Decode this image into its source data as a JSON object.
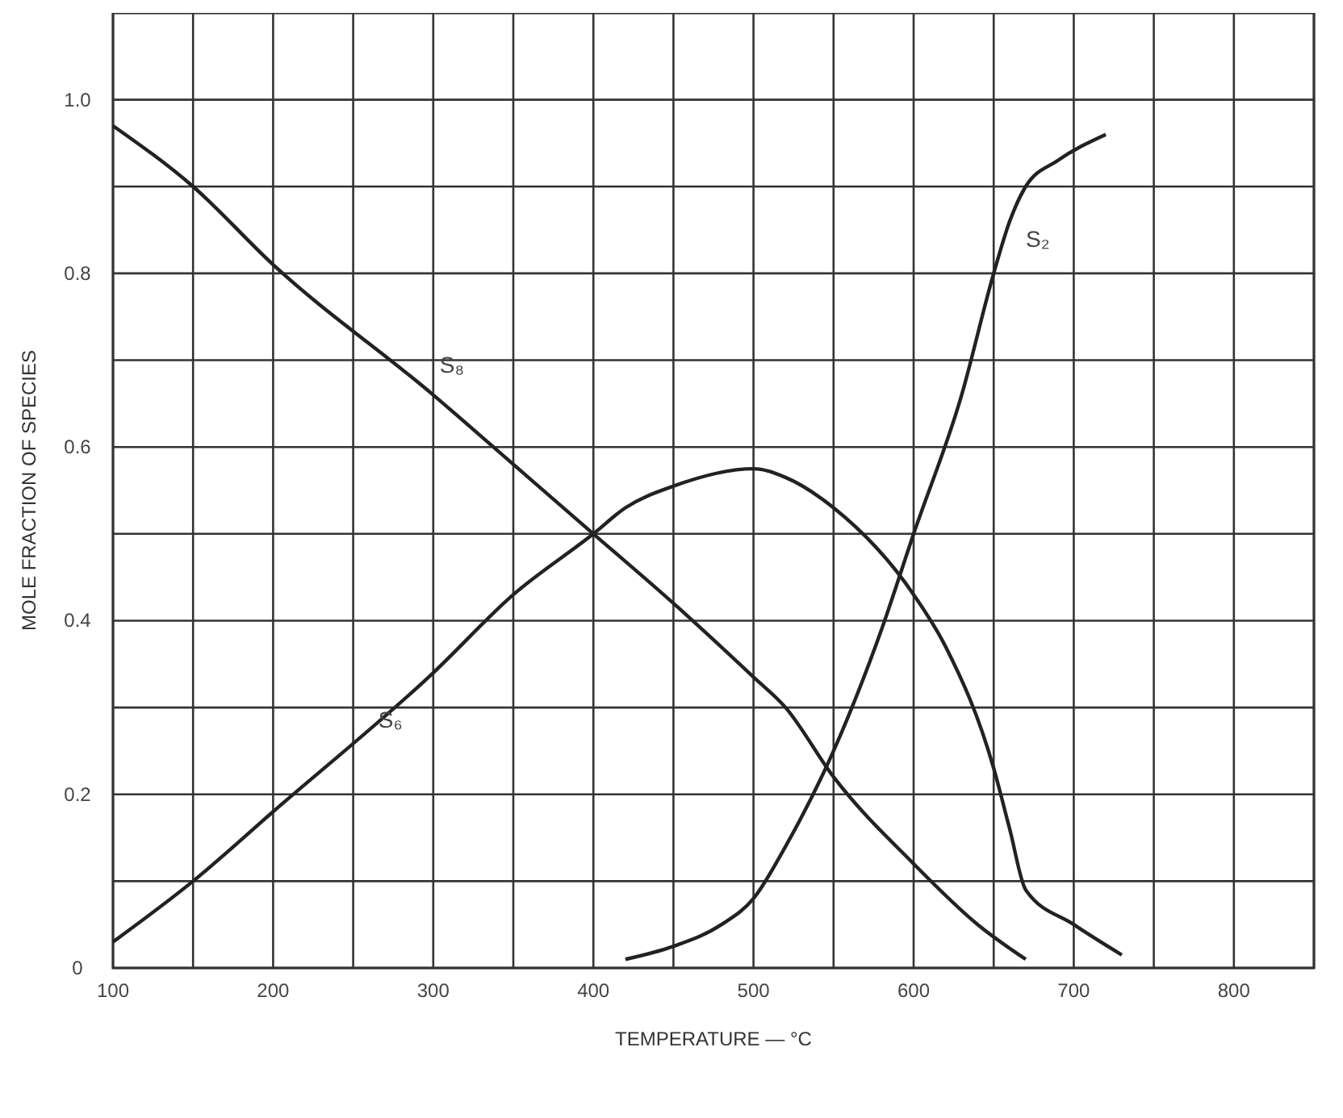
{
  "chart_data": {
    "type": "line",
    "xlabel": "TEMPERATURE — °C",
    "ylabel": "MOLE FRACTION OF SPECIES",
    "xlim": [
      100,
      850
    ],
    "ylim": [
      0,
      1.1
    ],
    "xticks": [
      100,
      {
        "value": 150,
        "label": null
      },
      200,
      {
        "value": 250,
        "label": null
      },
      300,
      {
        "value": 350,
        "label": null
      },
      400,
      {
        "value": 450,
        "label": null
      },
      500,
      {
        "value": 550,
        "label": null
      },
      600,
      {
        "value": 650,
        "label": null
      },
      700,
      {
        "value": 750,
        "label": null
      },
      800,
      {
        "value": 850,
        "label": null
      }
    ],
    "yticks": [
      0,
      {
        "value": 0.1,
        "label": null
      },
      0.2,
      {
        "value": 0.3,
        "label": null
      },
      0.4,
      {
        "value": 0.5,
        "label": null
      },
      0.6,
      {
        "value": 0.7,
        "label": null
      },
      0.8,
      {
        "value": 0.9,
        "label": null
      },
      {
        "value": 1,
        "label": "1.0"
      },
      {
        "value": 1.1,
        "label": null
      }
    ],
    "grid": true,
    "marker": "none",
    "line_style": "solid",
    "series": [
      {
        "name": "S₈",
        "color": "#222222",
        "x": [
          100,
          150,
          200,
          300,
          350,
          400,
          450,
          500,
          520,
          550,
          600,
          640,
          670
        ],
        "values": [
          0.97,
          0.9,
          0.81,
          0.66,
          0.58,
          0.5,
          0.42,
          0.335,
          0.3,
          0.22,
          0.12,
          0.05,
          0.01
        ]
      },
      {
        "name": "S₆",
        "color": "#222222",
        "x": [
          100,
          150,
          200,
          300,
          350,
          400,
          420,
          450,
          500,
          520,
          550,
          600,
          620,
          650,
          660,
          670,
          700,
          730
        ],
        "values": [
          0.03,
          0.1,
          0.18,
          0.34,
          0.43,
          0.5,
          0.53,
          0.555,
          0.575,
          0.565,
          0.53,
          0.43,
          0.37,
          0.23,
          0.16,
          0.09,
          0.05,
          0.015
        ]
      },
      {
        "name": "S₂",
        "color": "#222222",
        "x": [
          420,
          450,
          480,
          500,
          520,
          550,
          580,
          600,
          630,
          650,
          660,
          670,
          690,
          720
        ],
        "values": [
          0.01,
          0.025,
          0.05,
          0.08,
          0.14,
          0.25,
          0.39,
          0.5,
          0.66,
          0.8,
          0.86,
          0.9,
          0.93,
          0.96
        ]
      }
    ]
  }
}
